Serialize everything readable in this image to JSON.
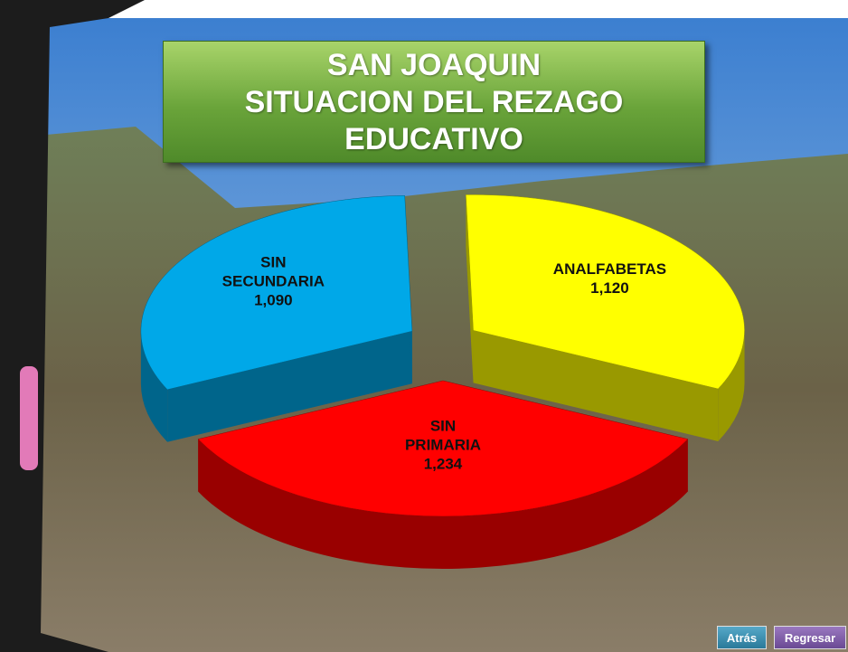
{
  "chart_data": {
    "type": "pie",
    "title": [
      "SAN JOAQUIN",
      "SITUACION DEL REZAGO",
      "EDUCATIVO"
    ],
    "categories": [
      "ANALFABETAS",
      "SIN PRIMARIA",
      "SIN SECUNDARIA"
    ],
    "values": [
      1120,
      1234,
      1090
    ],
    "value_labels": [
      "1,120",
      "1,234",
      "1,090"
    ],
    "colors": [
      "#ffff00",
      "#ff0000",
      "#00a8e8"
    ]
  },
  "buttons": [
    "Atrás",
    "Regresar"
  ]
}
